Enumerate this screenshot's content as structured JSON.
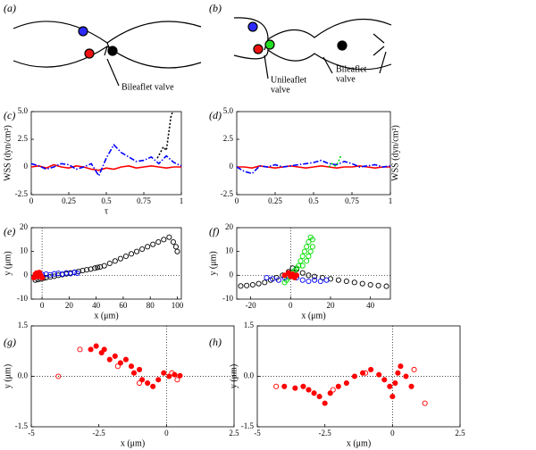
{
  "diagrams": [
    {
      "label": "(a)",
      "annotations": [
        {
          "lines": [
            "Bileaflet valve"
          ]
        }
      ]
    },
    {
      "label": "(b)",
      "annotations": [
        {
          "lines": [
            "Unileaflet",
            "valve"
          ]
        },
        {
          "lines": [
            "Bileaflet",
            "valve"
          ]
        }
      ]
    }
  ],
  "chart_data": [
    {
      "type": "line",
      "label": "(c)",
      "xlabel": "τ",
      "ylabel": "WSS (dyn/cm²)",
      "ylabel_side": "left",
      "xlim": [
        0,
        1
      ],
      "ylim": [
        -2.5,
        5
      ],
      "xticks": [
        0,
        0.25,
        0.5,
        0.75,
        1
      ],
      "yticks": [
        -2.5,
        0,
        2.5,
        {
          "value": 5,
          "label": "5.0"
        }
      ],
      "series": [
        {
          "color": "#ff0000",
          "dash": "solid",
          "x": [
            0,
            0.05,
            0.1,
            0.15,
            0.2,
            0.25,
            0.3,
            0.35,
            0.4,
            0.45,
            0.5,
            0.55,
            0.6,
            0.65,
            0.7,
            0.75,
            0.8,
            0.85,
            0.9,
            0.95,
            1
          ],
          "values": [
            0,
            0.1,
            -0.1,
            0.2,
            0,
            -0.1,
            0.1,
            0,
            -0.2,
            -0.3,
            -0.1,
            -0.2,
            0,
            0.1,
            -0.1,
            0,
            0.1,
            0,
            -0.1,
            0,
            0
          ]
        },
        {
          "color": "#0000ff",
          "dash": "dashdot",
          "x": [
            0,
            0.05,
            0.1,
            0.15,
            0.2,
            0.25,
            0.3,
            0.35,
            0.4,
            0.45,
            0.5,
            0.55,
            0.6,
            0.65,
            0.7,
            0.75,
            0.8,
            0.85,
            0.9,
            0.95,
            1
          ],
          "values": [
            0.3,
            0.1,
            -0.2,
            0,
            0.3,
            0.2,
            -0.2,
            0,
            0.3,
            -0.8,
            0.8,
            2.0,
            1.3,
            0.9,
            0.5,
            0.6,
            0.9,
            0.3,
            1.0,
            0.4,
            0.1
          ]
        },
        {
          "color": "#000000",
          "dash": "dotted",
          "x": [
            0.84,
            0.86,
            0.88,
            0.9,
            0.91,
            0.92,
            0.93,
            0.94
          ],
          "values": [
            0.8,
            1.3,
            1.8,
            1.5,
            2.5,
            3.5,
            4.5,
            4.9
          ]
        }
      ]
    },
    {
      "type": "line",
      "label": "(d)",
      "ylabel": "WSS (dyn/cm²)",
      "ylabel_side": "right",
      "xlim": [
        0,
        1
      ],
      "ylim": [
        -2.5,
        5
      ],
      "xticks": [
        0,
        0.25,
        0.5,
        0.75,
        1
      ],
      "yticks": [
        -2.5,
        0,
        2.5,
        {
          "value": 5,
          "label": "5.0"
        }
      ],
      "series": [
        {
          "color": "#ff0000",
          "dash": "solid",
          "x": [
            0,
            0.05,
            0.1,
            0.15,
            0.2,
            0.25,
            0.3,
            0.35,
            0.4,
            0.45,
            0.5,
            0.55,
            0.6,
            0.65,
            0.7,
            0.75,
            0.8,
            0.85,
            0.9,
            0.95,
            1
          ],
          "values": [
            0,
            0,
            -0.1,
            0.1,
            0,
            -0.1,
            0,
            0.1,
            0,
            -0.1,
            0,
            0.1,
            0,
            -0.1,
            0,
            0,
            0.1,
            0,
            -0.1,
            0,
            0
          ]
        },
        {
          "color": "#0000ff",
          "dash": "dashdot",
          "x": [
            0,
            0.05,
            0.1,
            0.15,
            0.2,
            0.25,
            0.3,
            0.35,
            0.4,
            0.45,
            0.5,
            0.55,
            0.6,
            0.65,
            0.7,
            0.75,
            0.8,
            0.85,
            0.9,
            0.95,
            1
          ],
          "values": [
            0,
            -0.4,
            -0.6,
            0.1,
            0,
            0.2,
            0,
            0.1,
            0.2,
            0.3,
            0.4,
            0.6,
            0.3,
            0.2,
            0.5,
            0.3,
            0,
            0.1,
            0.2,
            0,
            0.1
          ]
        },
        {
          "color": "#00dd00",
          "dash": "dotted",
          "x": [
            0.6,
            0.62,
            0.64,
            0.66,
            0.68
          ],
          "values": [
            0,
            0.3,
            0.1,
            0.4,
            1.1
          ]
        }
      ]
    },
    {
      "type": "scatter",
      "label": "(e)",
      "xlabel": "x (μm)",
      "ylabel": "y (μm)",
      "zero_lines": true,
      "xlim": [
        -8,
        103
      ],
      "ylim": [
        -10,
        20
      ],
      "xticks": [
        0,
        20,
        40,
        60,
        80,
        100
      ],
      "yticks": [
        -10,
        0,
        10,
        20
      ],
      "series": [
        {
          "color": "#000000",
          "marker": "open",
          "x": [
            -5,
            -3,
            -1,
            1,
            3,
            6,
            9,
            12,
            15,
            18,
            21,
            24,
            27,
            30,
            33,
            36,
            39,
            41,
            43,
            46,
            50,
            54,
            58,
            62,
            66,
            70,
            74,
            78,
            82,
            86,
            90,
            94,
            97,
            99,
            100
          ],
          "values": [
            -2,
            -1.8,
            -1.5,
            -1.2,
            -1,
            -0.7,
            -0.4,
            0,
            0.3,
            0.6,
            1,
            1.3,
            1.6,
            2,
            2.3,
            2.6,
            3,
            3.3,
            3.5,
            4,
            5,
            6,
            7,
            8,
            9,
            10,
            11,
            12,
            13,
            14,
            15,
            16,
            14,
            12,
            10
          ]
        },
        {
          "color": "#0000ff",
          "marker": "open",
          "x": [
            -3,
            0,
            3,
            6,
            9,
            12,
            15,
            18,
            21,
            24,
            26
          ],
          "values": [
            0,
            0.3,
            0.5,
            0.2,
            0.6,
            0.8,
            0.5,
            1,
            0.7,
            1.2,
            0.9
          ]
        },
        {
          "color": "#ff0000",
          "marker": "filled",
          "x": [
            -6,
            -5,
            -4,
            -3,
            -2,
            -1,
            0,
            -2,
            -4
          ],
          "values": [
            -1,
            0.5,
            1,
            -0.5,
            0.8,
            0,
            -1,
            1.2,
            0
          ]
        }
      ]
    },
    {
      "type": "scatter",
      "label": "(f)",
      "xlabel": "x (μm)",
      "ylabel": "y (μm)",
      "zero_lines": true,
      "xlim": [
        -27,
        50
      ],
      "ylim": [
        -10,
        20
      ],
      "xticks": [
        -20,
        0,
        20,
        40
      ],
      "yticks": [
        -10,
        0,
        10,
        20
      ],
      "series": [
        {
          "color": "#000000",
          "marker": "open",
          "x": [
            -25,
            -22,
            -19,
            -16,
            -13,
            -10,
            -7,
            -4,
            -1,
            1,
            3,
            6,
            9,
            12,
            16,
            20,
            24,
            28,
            32,
            36,
            40,
            44,
            48
          ],
          "values": [
            -4.5,
            -4.3,
            -4,
            -3.5,
            -3,
            -2,
            -1,
            0,
            1.5,
            3,
            2.5,
            1,
            0,
            -0.5,
            -1,
            -1.5,
            -2,
            -2.5,
            -3,
            -3.5,
            -4,
            -4.3,
            -4.6
          ]
        },
        {
          "color": "#00dd00",
          "marker": "open",
          "x": [
            -3,
            -2,
            -1,
            0,
            1,
            2,
            3,
            4,
            5,
            6,
            7,
            8,
            9,
            10,
            11,
            11,
            10,
            9,
            8,
            6
          ],
          "values": [
            -3,
            -2,
            -1,
            0,
            1,
            2,
            3,
            4,
            6,
            8,
            10,
            12,
            14,
            16,
            15,
            12,
            10,
            8,
            6,
            4
          ]
        },
        {
          "color": "#0000ff",
          "marker": "open",
          "x": [
            -12,
            -9,
            -6,
            -3,
            0,
            3,
            6,
            9,
            12,
            15,
            18
          ],
          "values": [
            -1,
            -1.5,
            -2,
            -1,
            -0.5,
            -1,
            -2,
            -2.5,
            -2,
            -2.5,
            -2
          ]
        },
        {
          "color": "#ff0000",
          "marker": "filled",
          "x": [
            -3,
            -1,
            0,
            1,
            2,
            3
          ],
          "values": [
            0,
            1,
            -0.5,
            0.5,
            -1,
            0
          ]
        }
      ]
    },
    {
      "type": "scatter",
      "label": "(g)",
      "xlabel": "x (μm)",
      "ylabel": "y (μm)",
      "zero_lines": true,
      "xlim": [
        -5,
        2.5
      ],
      "ylim": [
        -1.5,
        1.5
      ],
      "xticks": [
        -5,
        -2.5,
        0,
        2.5
      ],
      "yticks": [
        -1.5,
        {
          "value": 0,
          "label": "0.0"
        },
        1.5
      ],
      "series": [
        {
          "color": "#ff0000",
          "marker": "filled",
          "x": [
            -2.8,
            -2.6,
            -2.4,
            -2.3,
            -2.1,
            -1.9,
            -1.7,
            -1.5,
            -1.3,
            -1.2,
            -1,
            -0.9,
            -0.7,
            -0.5,
            -0.3,
            -0.1,
            0.1,
            0.3,
            0.5
          ],
          "values": [
            0.8,
            0.9,
            0.7,
            0.8,
            0.5,
            0.6,
            0.4,
            0.5,
            0.3,
            0.1,
            0.2,
            -0.1,
            -0.2,
            -0.3,
            -0.1,
            0.1,
            0,
            0.05,
            0.02
          ]
        },
        {
          "color": "#ff0000",
          "marker": "open",
          "x": [
            -4,
            -3.2,
            -1.8,
            -1,
            0.2,
            0.4
          ],
          "values": [
            0,
            0.8,
            0.3,
            -0.2,
            0.1,
            -0.1
          ]
        }
      ]
    },
    {
      "type": "scatter",
      "label": "(h)",
      "xlabel": "x (μm)",
      "ylabel": "y (μm)",
      "zero_lines": true,
      "xlim": [
        -5,
        2.5
      ],
      "ylim": [
        -1.5,
        1.5
      ],
      "xticks": [
        -5,
        -2.5,
        0,
        2.5
      ],
      "yticks": [
        -1.5,
        {
          "value": 0,
          "label": "0.0"
        },
        1.5
      ],
      "series": [
        {
          "color": "#ff0000",
          "marker": "filled",
          "x": [
            -4,
            -3.6,
            -3.3,
            -3.1,
            -2.9,
            -2.7,
            -2.5,
            -2.3,
            -2,
            -1.7,
            -1.4,
            -1.1,
            -0.8,
            -0.5,
            -0.3,
            -0.1,
            0,
            0.1,
            0.2,
            0.3,
            0.5,
            0.7
          ],
          "values": [
            -0.3,
            -0.35,
            -0.3,
            -0.4,
            -0.5,
            -0.6,
            -0.8,
            -0.5,
            -0.3,
            -0.2,
            0,
            0.1,
            0.2,
            0.05,
            -0.1,
            -0.3,
            -0.6,
            -0.2,
            0.1,
            0.3,
            0,
            -0.3
          ]
        },
        {
          "color": "#ff0000",
          "marker": "open",
          "x": [
            -4.3,
            -2.2,
            -1,
            0.8,
            1.2
          ],
          "values": [
            -0.3,
            -0.4,
            0.1,
            0.2,
            -0.8
          ]
        }
      ]
    }
  ]
}
